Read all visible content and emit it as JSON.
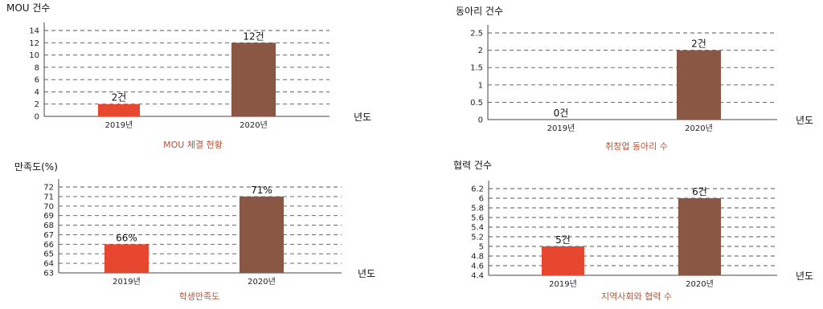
{
  "colors": {
    "bar_2019": "#e8472f",
    "bar_2020": "#8b5745",
    "caption": "#b0553a",
    "grid": "#555555"
  },
  "chart_data": [
    {
      "type": "bar",
      "ylabel": "MOU 건수",
      "xunit": "년도",
      "caption": "MOU 체결 현황",
      "categories": [
        "2019년",
        "2020년"
      ],
      "values": [
        2,
        12
      ],
      "data_labels": [
        "2건",
        "12건"
      ],
      "ylim": [
        0,
        14
      ],
      "yticks": [
        "14",
        "12",
        "10",
        "8",
        "6",
        "4",
        "2",
        "0"
      ],
      "grid": true
    },
    {
      "type": "bar",
      "ylabel": "동아리 건수",
      "xunit": "년도",
      "caption": "취창업 동아리 수",
      "categories": [
        "2019년",
        "2020년"
      ],
      "values": [
        0,
        2
      ],
      "data_labels": [
        "0건",
        "2건"
      ],
      "ylim": [
        0,
        2.5
      ],
      "yticks": [
        "2.5",
        "2",
        "1.5",
        "1",
        "0.5",
        "0"
      ],
      "grid": true
    },
    {
      "type": "bar",
      "ylabel": "만족도(%)",
      "xunit": "년도",
      "caption": "학생만족도",
      "categories": [
        "2019년",
        "2020년"
      ],
      "values": [
        66,
        71
      ],
      "data_labels": [
        "66%",
        "71%"
      ],
      "ylim": [
        63,
        72
      ],
      "yticks": [
        "72",
        "71",
        "70",
        "69",
        "68",
        "67",
        "66",
        "65",
        "64",
        "63"
      ],
      "grid": true
    },
    {
      "type": "bar",
      "ylabel": "협력 건수",
      "xunit": "년도",
      "caption": "지역사회와 협력 수",
      "categories": [
        "2019년",
        "2020년"
      ],
      "values": [
        5,
        6
      ],
      "data_labels": [
        "5건",
        "6건"
      ],
      "ylim": [
        4.4,
        6.2
      ],
      "yticks": [
        "6.2",
        "6",
        "5.8",
        "5.6",
        "5.4",
        "5.2",
        "5",
        "4.8",
        "4.6",
        "4.4"
      ],
      "grid": true
    }
  ]
}
